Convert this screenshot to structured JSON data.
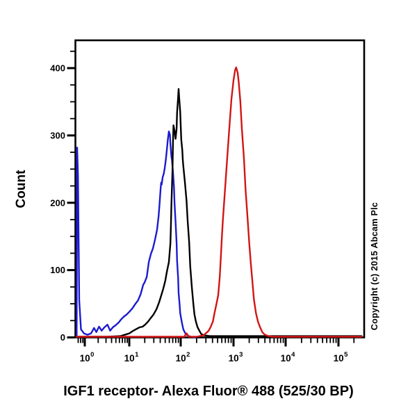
{
  "figure": {
    "caption": "IGF1 receptor- Alexa Fluor® 488 (525/30 BP)",
    "copyright": "Copyright (c) 2015 Abcam Plc"
  },
  "chart_data": {
    "type": "line",
    "variant": "flow-cytometry-histogram",
    "title": "",
    "xlabel": "IGF1 receptor- Alexa Fluor® 488 (525/30 BP)",
    "ylabel": "Count",
    "x_scale": "log10",
    "x_log_range": [
      -0.22,
      5.5
    ],
    "ylim": [
      0,
      440
    ],
    "y_major_ticks": [
      0,
      100,
      200,
      300,
      400
    ],
    "y_minor_step": 25,
    "x_tick_base": "10",
    "x_decade_exponents": [
      0,
      1,
      2,
      3,
      4,
      5
    ],
    "grid": false,
    "legend": "none",
    "frame_color": "#000000",
    "series": [
      {
        "name": "blue-histogram",
        "color": "#1b1bd0",
        "x_is_log10": true,
        "points": [
          [
            -0.19,
            0
          ],
          [
            -0.18,
            282
          ],
          [
            -0.16,
            240
          ],
          [
            -0.13,
            55
          ],
          [
            -0.09,
            12
          ],
          [
            -0.02,
            6
          ],
          [
            0.06,
            4
          ],
          [
            0.14,
            6
          ],
          [
            0.21,
            14
          ],
          [
            0.26,
            8
          ],
          [
            0.32,
            16
          ],
          [
            0.38,
            10
          ],
          [
            0.44,
            15
          ],
          [
            0.51,
            19
          ],
          [
            0.57,
            10
          ],
          [
            0.63,
            15
          ],
          [
            0.69,
            18
          ],
          [
            0.76,
            22
          ],
          [
            0.82,
            27
          ],
          [
            0.88,
            31
          ],
          [
            0.94,
            34
          ],
          [
            1.0,
            38
          ],
          [
            1.06,
            43
          ],
          [
            1.12,
            50
          ],
          [
            1.17,
            55
          ],
          [
            1.22,
            64
          ],
          [
            1.27,
            78
          ],
          [
            1.3,
            82
          ],
          [
            1.34,
            90
          ],
          [
            1.38,
            112
          ],
          [
            1.42,
            124
          ],
          [
            1.46,
            132
          ],
          [
            1.5,
            145
          ],
          [
            1.54,
            160
          ],
          [
            1.57,
            180
          ],
          [
            1.59,
            200
          ],
          [
            1.61,
            221
          ],
          [
            1.62,
            230
          ],
          [
            1.63,
            227
          ],
          [
            1.65,
            238
          ],
          [
            1.67,
            243
          ],
          [
            1.69,
            252
          ],
          [
            1.71,
            263
          ],
          [
            1.73,
            278
          ],
          [
            1.75,
            294
          ],
          [
            1.77,
            306
          ],
          [
            1.79,
            301
          ],
          [
            1.8,
            287
          ],
          [
            1.82,
            268
          ],
          [
            1.83,
            264
          ],
          [
            1.85,
            246
          ],
          [
            1.87,
            222
          ],
          [
            1.88,
            200
          ],
          [
            1.9,
            172
          ],
          [
            1.92,
            140
          ],
          [
            1.93,
            114
          ],
          [
            1.95,
            88
          ],
          [
            1.96,
            66
          ],
          [
            1.98,
            48
          ],
          [
            1.99,
            36
          ],
          [
            2.01,
            27
          ],
          [
            2.03,
            19
          ],
          [
            2.05,
            12
          ],
          [
            2.08,
            7
          ],
          [
            2.11,
            4
          ],
          [
            2.15,
            2
          ],
          [
            2.2,
            1
          ],
          [
            2.27,
            0
          ]
        ]
      },
      {
        "name": "black-histogram",
        "color": "#000000",
        "x_is_log10": true,
        "points": [
          [
            -0.19,
            1
          ],
          [
            0.5,
            1
          ],
          [
            0.8,
            2
          ],
          [
            1.0,
            6
          ],
          [
            1.08,
            10
          ],
          [
            1.15,
            13
          ],
          [
            1.2,
            15
          ],
          [
            1.26,
            16
          ],
          [
            1.31,
            19
          ],
          [
            1.36,
            23
          ],
          [
            1.42,
            29
          ],
          [
            1.47,
            34
          ],
          [
            1.53,
            42
          ],
          [
            1.58,
            52
          ],
          [
            1.62,
            62
          ],
          [
            1.66,
            72
          ],
          [
            1.7,
            84
          ],
          [
            1.73,
            97
          ],
          [
            1.77,
            112
          ],
          [
            1.8,
            140
          ],
          [
            1.81,
            165
          ],
          [
            1.82,
            200
          ],
          [
            1.84,
            248
          ],
          [
            1.85,
            290
          ],
          [
            1.86,
            315
          ],
          [
            1.88,
            307
          ],
          [
            1.9,
            295
          ],
          [
            1.92,
            310
          ],
          [
            1.93,
            334
          ],
          [
            1.95,
            357
          ],
          [
            1.96,
            369
          ],
          [
            1.97,
            356
          ],
          [
            1.99,
            335
          ],
          [
            2.0,
            315
          ],
          [
            2.01,
            294
          ],
          [
            2.03,
            278
          ],
          [
            2.04,
            264
          ],
          [
            2.05,
            254
          ],
          [
            2.08,
            230
          ],
          [
            2.11,
            203
          ],
          [
            2.13,
            175
          ],
          [
            2.16,
            141
          ],
          [
            2.18,
            106
          ],
          [
            2.21,
            75
          ],
          [
            2.24,
            50
          ],
          [
            2.26,
            34
          ],
          [
            2.29,
            23
          ],
          [
            2.32,
            15
          ],
          [
            2.36,
            9
          ],
          [
            2.39,
            5
          ],
          [
            2.45,
            3
          ],
          [
            2.55,
            2
          ],
          [
            5.45,
            2
          ]
        ]
      },
      {
        "name": "red-histogram",
        "color": "#d31414",
        "x_is_log10": true,
        "points": [
          [
            -0.19,
            1
          ],
          [
            1.9,
            1
          ],
          [
            2.07,
            1
          ],
          [
            2.09,
            4
          ],
          [
            2.11,
            6
          ],
          [
            2.13,
            4
          ],
          [
            2.15,
            1
          ],
          [
            2.3,
            1
          ],
          [
            2.43,
            3
          ],
          [
            2.49,
            7
          ],
          [
            2.53,
            10
          ],
          [
            2.57,
            16
          ],
          [
            2.61,
            24
          ],
          [
            2.64,
            36
          ],
          [
            2.68,
            51
          ],
          [
            2.71,
            63
          ],
          [
            2.74,
            90
          ],
          [
            2.76,
            120
          ],
          [
            2.78,
            150
          ],
          [
            2.8,
            176
          ],
          [
            2.84,
            220
          ],
          [
            2.88,
            266
          ],
          [
            2.92,
            310
          ],
          [
            2.96,
            354
          ],
          [
            3.0,
            382
          ],
          [
            3.03,
            397
          ],
          [
            3.05,
            401
          ],
          [
            3.08,
            393
          ],
          [
            3.1,
            379
          ],
          [
            3.13,
            351
          ],
          [
            3.16,
            310
          ],
          [
            3.2,
            266
          ],
          [
            3.23,
            220
          ],
          [
            3.27,
            176
          ],
          [
            3.3,
            142
          ],
          [
            3.33,
            111
          ],
          [
            3.36,
            85
          ],
          [
            3.39,
            57
          ],
          [
            3.43,
            36
          ],
          [
            3.47,
            23
          ],
          [
            3.51,
            15
          ],
          [
            3.55,
            8
          ],
          [
            3.6,
            4
          ],
          [
            3.67,
            2
          ],
          [
            3.76,
            1
          ],
          [
            5.45,
            1
          ]
        ]
      }
    ]
  }
}
